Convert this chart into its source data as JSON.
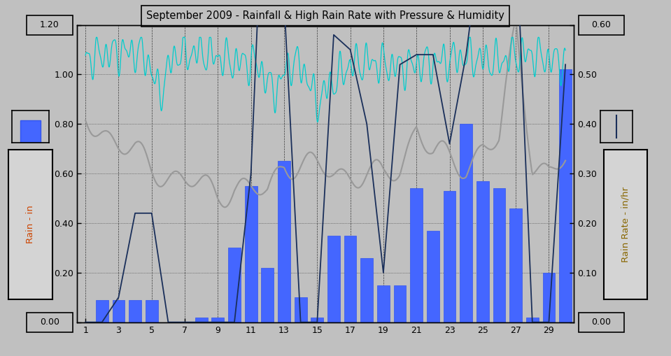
{
  "title": "September 2009 - Rainfall & High Rain Rate with Pressure & Humidity",
  "bg_color": "#c0c0c0",
  "plot_bg_color": "#c0c0c0",
  "left_ylabel": "Rain - in",
  "right_ylabel": "Rain Rate - in/hr",
  "left_ylabel_color": "#cc4400",
  "right_ylabel_color": "#886600",
  "ylim_left": [
    0.0,
    1.2
  ],
  "ylim_right": [
    0.0,
    0.6
  ],
  "xlim": [
    0.5,
    30.5
  ],
  "xticks": [
    1,
    3,
    5,
    7,
    9,
    11,
    13,
    15,
    17,
    19,
    21,
    23,
    25,
    27,
    29
  ],
  "days": [
    1,
    2,
    3,
    4,
    5,
    6,
    7,
    8,
    9,
    10,
    11,
    12,
    13,
    14,
    15,
    16,
    17,
    18,
    19,
    20,
    21,
    22,
    23,
    24,
    25,
    26,
    27,
    28,
    29,
    30
  ],
  "rainfall": [
    0.0,
    0.09,
    0.09,
    0.09,
    0.09,
    0.0,
    0.0,
    0.02,
    0.02,
    0.3,
    0.55,
    0.22,
    0.65,
    0.1,
    0.02,
    0.35,
    0.35,
    0.26,
    0.15,
    0.15,
    0.54,
    0.37,
    0.53,
    0.8,
    0.57,
    0.54,
    0.46,
    0.02,
    0.2,
    1.02
  ],
  "rain_rate": [
    0.0,
    0.0,
    0.05,
    0.22,
    0.22,
    0.0,
    0.0,
    0.0,
    0.0,
    0.0,
    0.3,
    1.09,
    0.65,
    0.0,
    0.0,
    0.58,
    0.55,
    0.4,
    0.1,
    0.52,
    0.54,
    0.54,
    0.36,
    0.54,
    0.8,
    0.8,
    0.8,
    0.0,
    0.0,
    0.52
  ],
  "bar_color": "#4466ff",
  "bar_edge_color": "#3355ee",
  "rain_rate_color": "#1a2f5a",
  "humidity_color": "#00cccc",
  "pressure_color": "#999999",
  "pressure": [
    0.82,
    0.78,
    0.72,
    0.68,
    0.62,
    0.6,
    0.57,
    0.55,
    0.52,
    0.55,
    0.53,
    0.52,
    0.65,
    0.64,
    0.62,
    0.6,
    0.6,
    0.6,
    0.58,
    0.62,
    0.8,
    0.68,
    0.65,
    0.63,
    0.71,
    0.73,
    1.2,
    0.65,
    0.6,
    0.65
  ],
  "yticks_left": [
    0.0,
    0.2,
    0.4,
    0.6,
    0.8,
    1.0,
    1.2
  ],
  "yticks_right": [
    0.0,
    0.1,
    0.2,
    0.3,
    0.4,
    0.5,
    0.6
  ]
}
